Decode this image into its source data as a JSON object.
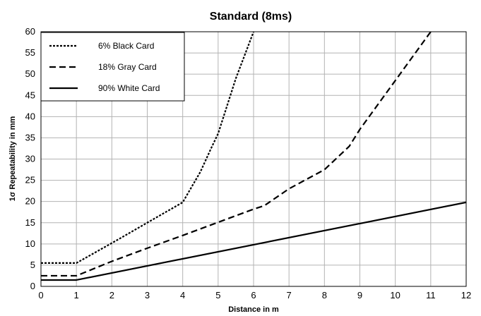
{
  "chart_data": {
    "type": "line",
    "title": "Standard  (8ms)",
    "xlabel": "Distance in m",
    "ylabel": "1σ Repeatability in mm",
    "xlim": [
      0,
      12
    ],
    "ylim": [
      0,
      60
    ],
    "x_ticks": [
      0,
      1,
      2,
      3,
      4,
      5,
      6,
      7,
      8,
      9,
      10,
      11,
      12
    ],
    "y_ticks": [
      0,
      5,
      10,
      15,
      20,
      25,
      30,
      35,
      40,
      45,
      50,
      55,
      60
    ],
    "grid": true,
    "legend_position": "top-left",
    "series": [
      {
        "name": "6% Black Card",
        "dash": "dotted",
        "color": "#000000",
        "x": [
          0,
          1,
          2,
          3,
          4,
          4.5,
          4.8,
          5,
          5.5,
          6
        ],
        "y": [
          5.5,
          5.5,
          10.2,
          15,
          19.8,
          27,
          32.5,
          36,
          49,
          60
        ]
      },
      {
        "name": "18% Gray Card",
        "dash": "dashed",
        "color": "#000000",
        "x": [
          0,
          1,
          2,
          3,
          4,
          5,
          6,
          6.3,
          7,
          8,
          8.7,
          9,
          10,
          11
        ],
        "y": [
          2.5,
          2.5,
          5.9,
          9,
          12,
          15.1,
          18.2,
          19,
          23,
          27.5,
          33,
          37,
          48.5,
          60
        ]
      },
      {
        "name": "90% White Card",
        "dash": "solid",
        "color": "#000000",
        "x": [
          0,
          1,
          12
        ],
        "y": [
          1.5,
          1.5,
          19.8
        ]
      }
    ]
  }
}
